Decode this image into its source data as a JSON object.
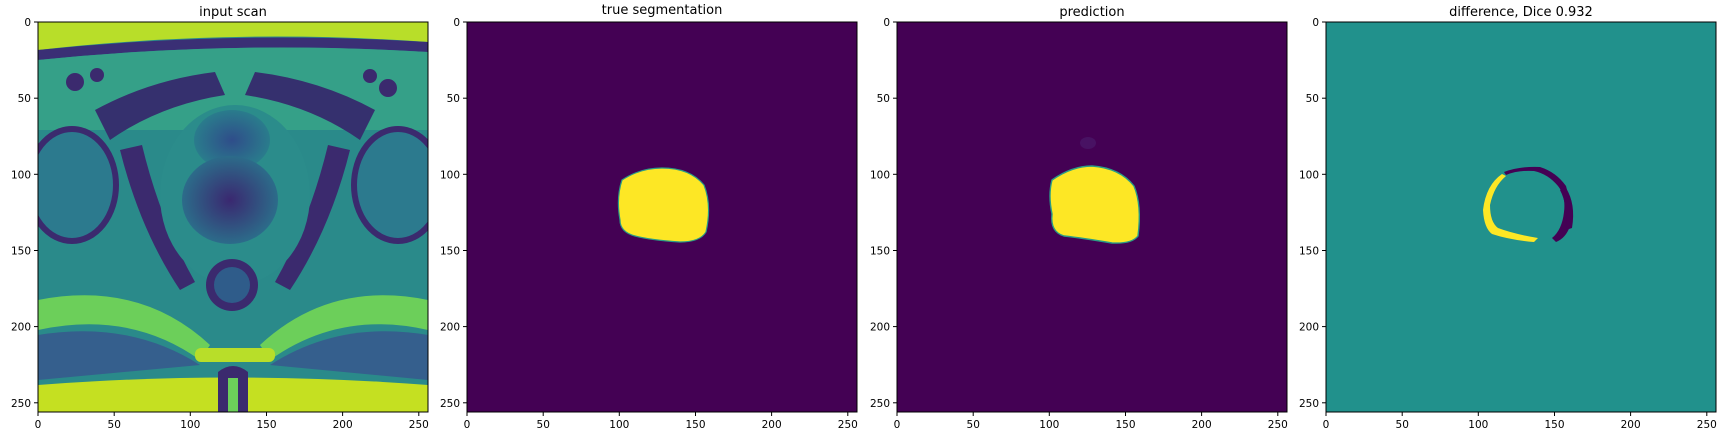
{
  "figure": {
    "panels": [
      {
        "title": "input scan",
        "kind": "scan",
        "x_ticks": [
          0,
          50,
          100,
          150,
          200,
          250
        ],
        "y_ticks": [
          0,
          50,
          100,
          150,
          200,
          250
        ],
        "extent": [
          0,
          256
        ]
      },
      {
        "title": "true segmentation",
        "kind": "mask",
        "x_ticks": [
          0,
          50,
          100,
          150,
          200,
          250
        ],
        "y_ticks": [
          0,
          50,
          100,
          150,
          200,
          250
        ],
        "extent": [
          0,
          256
        ]
      },
      {
        "title": "prediction",
        "kind": "prediction",
        "x_ticks": [
          0,
          50,
          100,
          150,
          200,
          250
        ],
        "y_ticks": [
          0,
          50,
          100,
          150,
          200,
          250
        ],
        "extent": [
          0,
          256
        ]
      },
      {
        "title": "difference, Dice 0.932",
        "kind": "difference",
        "x_ticks": [
          0,
          50,
          100,
          150,
          200,
          250
        ],
        "y_ticks": [
          0,
          50,
          100,
          150,
          200,
          250
        ],
        "extent": [
          0,
          256
        ]
      }
    ],
    "colors": {
      "low": "#440154",
      "mid": "#21918c",
      "high": "#fde725",
      "scan_dark": "#3b2a6e",
      "scan_mid": "#2a8a8a",
      "scan_light": "#7ad151"
    }
  }
}
